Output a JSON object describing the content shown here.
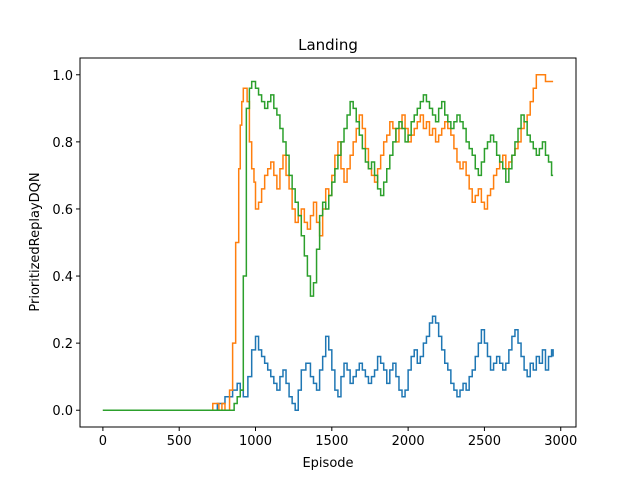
{
  "chart_data": {
    "type": "line",
    "title": "Landing",
    "xlabel": "Episode",
    "ylabel": "PrioritizedReplayDQN",
    "xlim": [
      -150,
      3100
    ],
    "ylim": [
      -0.05,
      1.05
    ],
    "xticks": [
      0,
      500,
      1000,
      1500,
      2000,
      2500,
      3000
    ],
    "xtick_labels": [
      "0",
      "500",
      "1000",
      "1500",
      "2000",
      "2500",
      "3000"
    ],
    "yticks": [
      0.0,
      0.2,
      0.4,
      0.6,
      0.8,
      1.0
    ],
    "ytick_labels": [
      "0.0",
      "0.2",
      "0.4",
      "0.6",
      "0.8",
      "1.0"
    ],
    "grid": false,
    "legend": "none",
    "series": [
      {
        "color": "#1f77b4",
        "x": [
          0,
          700,
          750,
          800,
          850,
          880,
          900,
          920,
          950,
          975,
          1000,
          1020,
          1040,
          1060,
          1080,
          1100,
          1120,
          1140,
          1160,
          1180,
          1200,
          1220,
          1240,
          1260,
          1280,
          1300,
          1330,
          1360,
          1380,
          1400,
          1420,
          1440,
          1460,
          1480,
          1500,
          1520,
          1540,
          1560,
          1580,
          1600,
          1620,
          1640,
          1660,
          1680,
          1700,
          1720,
          1740,
          1760,
          1780,
          1800,
          1820,
          1840,
          1860,
          1880,
          1900,
          1920,
          1940,
          1960,
          1980,
          2000,
          2020,
          2040,
          2060,
          2080,
          2100,
          2120,
          2140,
          2160,
          2180,
          2200,
          2220,
          2240,
          2260,
          2280,
          2300,
          2320,
          2340,
          2360,
          2380,
          2400,
          2420,
          2440,
          2460,
          2480,
          2500,
          2520,
          2540,
          2560,
          2580,
          2600,
          2620,
          2640,
          2660,
          2680,
          2700,
          2720,
          2740,
          2760,
          2780,
          2800,
          2820,
          2840,
          2860,
          2880,
          2900,
          2920,
          2940,
          2950
        ],
        "y": [
          0,
          0,
          0.02,
          0.04,
          0.06,
          0.08,
          0.06,
          0.04,
          0.1,
          0.18,
          0.22,
          0.18,
          0.16,
          0.14,
          0.12,
          0.1,
          0.08,
          0.06,
          0.1,
          0.12,
          0.08,
          0.04,
          0.02,
          0.0,
          0.06,
          0.12,
          0.14,
          0.1,
          0.08,
          0.06,
          0.12,
          0.16,
          0.22,
          0.18,
          0.12,
          0.06,
          0.04,
          0.1,
          0.14,
          0.12,
          0.08,
          0.1,
          0.12,
          0.14,
          0.12,
          0.1,
          0.08,
          0.1,
          0.12,
          0.16,
          0.14,
          0.12,
          0.08,
          0.12,
          0.14,
          0.1,
          0.06,
          0.04,
          0.06,
          0.12,
          0.16,
          0.18,
          0.14,
          0.16,
          0.2,
          0.22,
          0.26,
          0.28,
          0.26,
          0.22,
          0.18,
          0.14,
          0.12,
          0.08,
          0.06,
          0.04,
          0.06,
          0.08,
          0.06,
          0.1,
          0.12,
          0.16,
          0.2,
          0.24,
          0.2,
          0.16,
          0.12,
          0.14,
          0.16,
          0.14,
          0.12,
          0.14,
          0.18,
          0.22,
          0.24,
          0.2,
          0.16,
          0.12,
          0.1,
          0.14,
          0.12,
          0.16,
          0.14,
          0.18,
          0.12,
          0.16,
          0.18,
          0.16
        ]
      },
      {
        "color": "#ff7f0e",
        "x": [
          0,
          700,
          720,
          760,
          780,
          800,
          830,
          850,
          870,
          890,
          900,
          910,
          920,
          930,
          945,
          960,
          975,
          990,
          1000,
          1020,
          1040,
          1060,
          1080,
          1100,
          1120,
          1140,
          1160,
          1180,
          1200,
          1220,
          1240,
          1260,
          1280,
          1300,
          1320,
          1340,
          1360,
          1380,
          1400,
          1420,
          1440,
          1460,
          1480,
          1500,
          1520,
          1540,
          1560,
          1580,
          1600,
          1620,
          1640,
          1660,
          1680,
          1700,
          1720,
          1740,
          1760,
          1780,
          1800,
          1820,
          1840,
          1860,
          1880,
          1900,
          1920,
          1940,
          1960,
          1980,
          2000,
          2020,
          2040,
          2060,
          2080,
          2100,
          2120,
          2140,
          2160,
          2180,
          2200,
          2220,
          2240,
          2260,
          2280,
          2300,
          2320,
          2340,
          2360,
          2380,
          2400,
          2420,
          2440,
          2460,
          2480,
          2500,
          2520,
          2540,
          2560,
          2580,
          2600,
          2620,
          2640,
          2660,
          2680,
          2700,
          2720,
          2740,
          2760,
          2780,
          2800,
          2820,
          2840,
          2860,
          2880,
          2900,
          2920,
          2940,
          2950
        ],
        "y": [
          0,
          0,
          0.02,
          0.0,
          0.02,
          0.0,
          0.06,
          0.2,
          0.5,
          0.72,
          0.85,
          0.92,
          0.96,
          0.96,
          0.92,
          0.8,
          0.72,
          0.68,
          0.6,
          0.62,
          0.66,
          0.7,
          0.72,
          0.74,
          0.7,
          0.66,
          0.72,
          0.76,
          0.7,
          0.66,
          0.6,
          0.56,
          0.58,
          0.6,
          0.56,
          0.54,
          0.58,
          0.62,
          0.56,
          0.52,
          0.6,
          0.66,
          0.64,
          0.7,
          0.76,
          0.8,
          0.72,
          0.68,
          0.72,
          0.76,
          0.8,
          0.84,
          0.88,
          0.84,
          0.78,
          0.72,
          0.7,
          0.68,
          0.72,
          0.76,
          0.8,
          0.82,
          0.86,
          0.84,
          0.8,
          0.84,
          0.88,
          0.84,
          0.8,
          0.82,
          0.84,
          0.86,
          0.88,
          0.84,
          0.86,
          0.82,
          0.84,
          0.8,
          0.82,
          0.84,
          0.86,
          0.84,
          0.82,
          0.78,
          0.74,
          0.72,
          0.74,
          0.7,
          0.66,
          0.62,
          0.64,
          0.66,
          0.62,
          0.6,
          0.64,
          0.66,
          0.7,
          0.72,
          0.74,
          0.76,
          0.72,
          0.74,
          0.76,
          0.78,
          0.8,
          0.84,
          0.86,
          0.88,
          0.92,
          0.96,
          1.0,
          1.0,
          1.0,
          0.98,
          0.98,
          0.98,
          0.98
        ]
      },
      {
        "color": "#2ca02c",
        "x": [
          0,
          800,
          850,
          860,
          880,
          900,
          920,
          940,
          960,
          975,
          1000,
          1020,
          1040,
          1060,
          1080,
          1100,
          1120,
          1140,
          1160,
          1180,
          1200,
          1220,
          1240,
          1260,
          1280,
          1300,
          1320,
          1340,
          1360,
          1380,
          1400,
          1420,
          1440,
          1460,
          1480,
          1500,
          1520,
          1540,
          1560,
          1580,
          1600,
          1620,
          1640,
          1660,
          1680,
          1700,
          1720,
          1740,
          1760,
          1780,
          1800,
          1820,
          1840,
          1860,
          1880,
          1900,
          1920,
          1940,
          1960,
          1980,
          2000,
          2020,
          2040,
          2060,
          2080,
          2100,
          2120,
          2140,
          2160,
          2180,
          2200,
          2220,
          2240,
          2260,
          2280,
          2300,
          2320,
          2340,
          2360,
          2380,
          2400,
          2420,
          2440,
          2460,
          2480,
          2500,
          2520,
          2540,
          2560,
          2580,
          2600,
          2620,
          2640,
          2660,
          2680,
          2700,
          2720,
          2740,
          2760,
          2780,
          2800,
          2820,
          2840,
          2860,
          2880,
          2900,
          2920,
          2940,
          2950
        ],
        "y": [
          0,
          0,
          0.0,
          0.02,
          0.04,
          0.06,
          0.4,
          0.9,
          0.96,
          0.98,
          0.96,
          0.94,
          0.92,
          0.9,
          0.92,
          0.94,
          0.9,
          0.88,
          0.84,
          0.8,
          0.76,
          0.7,
          0.66,
          0.62,
          0.58,
          0.52,
          0.46,
          0.4,
          0.34,
          0.38,
          0.48,
          0.58,
          0.62,
          0.6,
          0.64,
          0.68,
          0.72,
          0.76,
          0.8,
          0.84,
          0.88,
          0.92,
          0.9,
          0.86,
          0.82,
          0.78,
          0.74,
          0.72,
          0.74,
          0.7,
          0.66,
          0.64,
          0.68,
          0.72,
          0.76,
          0.8,
          0.84,
          0.86,
          0.84,
          0.8,
          0.82,
          0.86,
          0.88,
          0.9,
          0.92,
          0.94,
          0.92,
          0.9,
          0.88,
          0.86,
          0.9,
          0.92,
          0.88,
          0.86,
          0.84,
          0.86,
          0.88,
          0.86,
          0.84,
          0.8,
          0.78,
          0.76,
          0.72,
          0.7,
          0.74,
          0.78,
          0.8,
          0.82,
          0.8,
          0.76,
          0.74,
          0.72,
          0.68,
          0.72,
          0.76,
          0.8,
          0.84,
          0.88,
          0.86,
          0.82,
          0.8,
          0.78,
          0.76,
          0.78,
          0.8,
          0.76,
          0.74,
          0.7,
          0.7
        ]
      }
    ]
  }
}
